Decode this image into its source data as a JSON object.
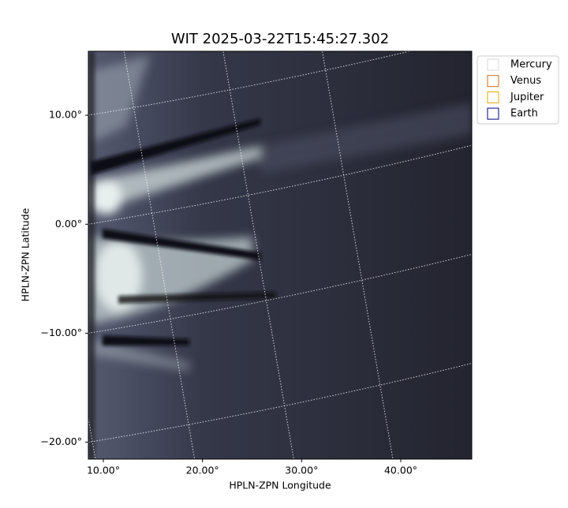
{
  "chart_data": {
    "type": "image",
    "title": "WIT 2025-03-22T15:45:27.302",
    "x_label": "HPLN-ZPN Longitude",
    "y_label": "HPLN-ZPN Latitude",
    "xlim": [
      8.49,
      47.16
    ],
    "ylim": [
      -21.55,
      15.87
    ],
    "xticks": [
      {
        "value": 10,
        "label": "10.00°"
      },
      {
        "value": 20,
        "label": "20.00°"
      },
      {
        "value": 30,
        "label": "30.00°"
      },
      {
        "value": 40,
        "label": "40.00°"
      }
    ],
    "yticks": [
      {
        "value": 10,
        "label": "10.00°"
      },
      {
        "value": 0,
        "label": "0.00°"
      },
      {
        "value": -10,
        "label": "−10.00°"
      },
      {
        "value": -20,
        "label": "−20.00°"
      }
    ],
    "grid": true,
    "legend": "outside",
    "series": [
      {
        "name": "Mercury",
        "color": "#d8d8d8"
      },
      {
        "name": "Venus",
        "color": "#d2691e"
      },
      {
        "name": "Jupiter",
        "color": "#e0a800"
      },
      {
        "name": "Earth",
        "color": "#000080"
      }
    ]
  }
}
